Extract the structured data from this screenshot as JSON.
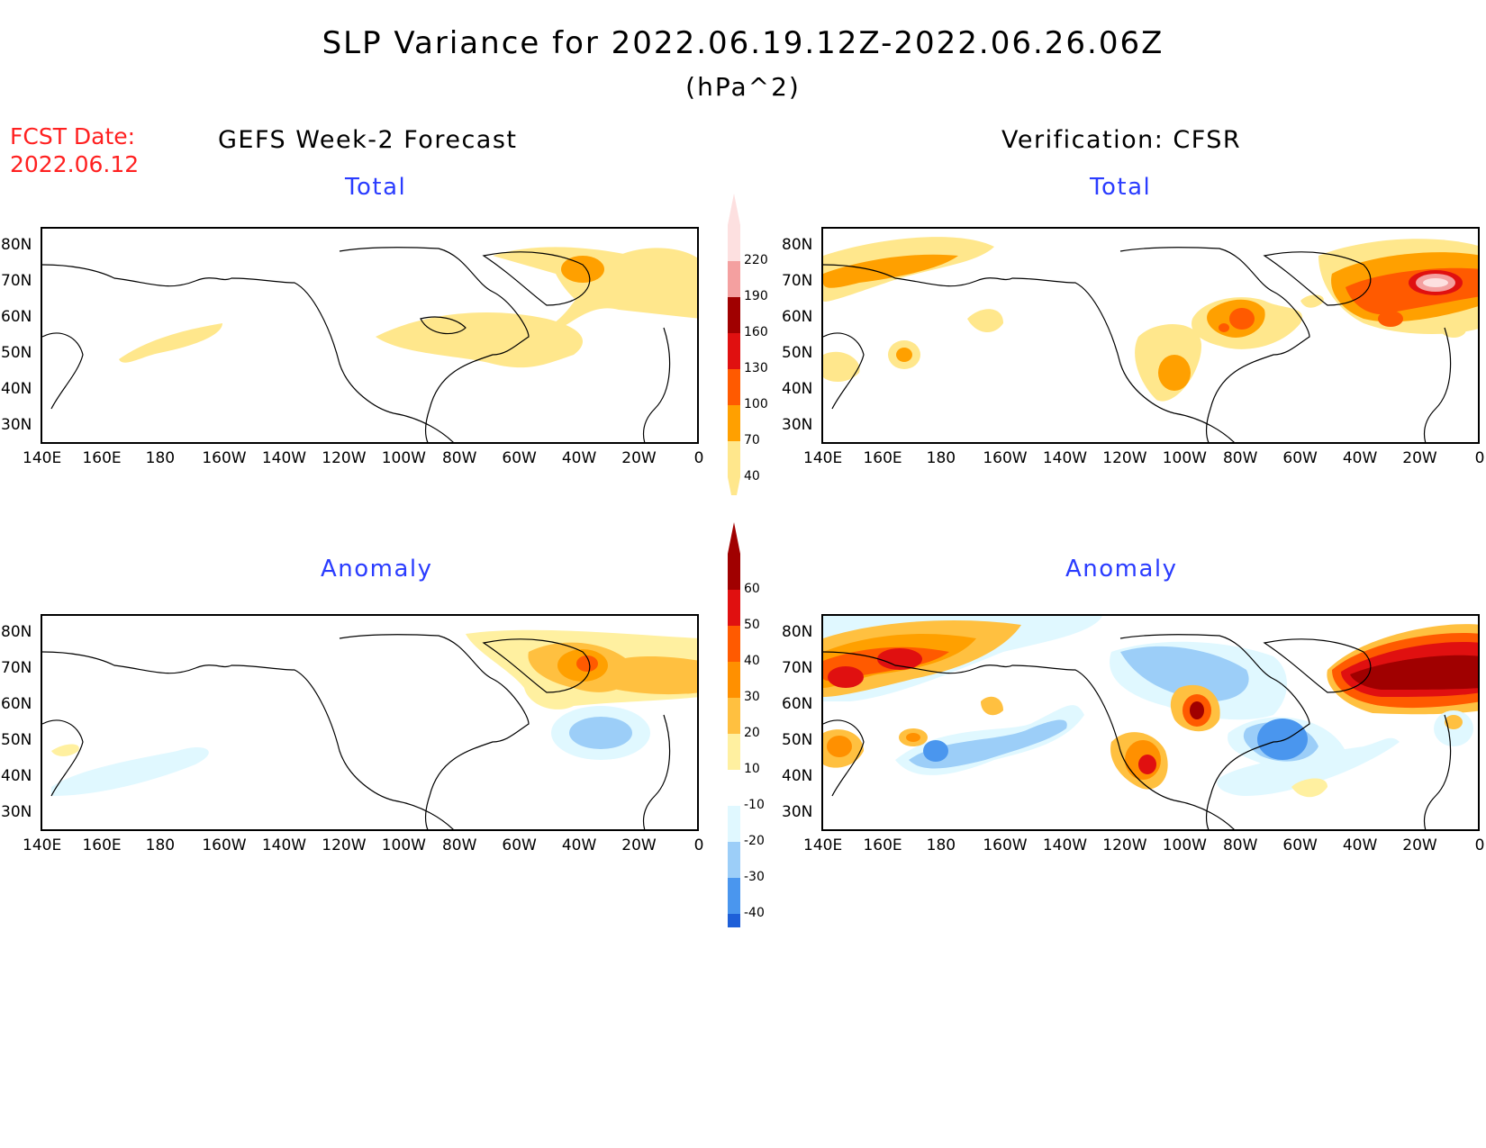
{
  "title": "SLP Variance for 2022.06.19.12Z-2022.06.26.06Z",
  "units": "(hPa^2)",
  "forecast_date": {
    "label": "FCST Date:",
    "value": "2022.06.12"
  },
  "columns": {
    "left": "GEFS Week-2 Forecast",
    "right": "Verification: CFSR"
  },
  "panel_titles": {
    "total": "Total",
    "anomaly": "Anomaly"
  },
  "lon_ticks": [
    "140E",
    "160E",
    "180",
    "160W",
    "140W",
    "120W",
    "100W",
    "80W",
    "60W",
    "40W",
    "20W",
    "0"
  ],
  "lat_ticks": [
    "80N",
    "70N",
    "60N",
    "50N",
    "40N",
    "30N"
  ],
  "colorbars": {
    "total": {
      "labels": [
        "220",
        "190",
        "160",
        "130",
        "100",
        "70",
        "40"
      ],
      "colors": [
        "#fde0e0",
        "#f4a0a0",
        "#a00000",
        "#e01010",
        "#ff5a00",
        "#ffa000",
        "#ffe78c"
      ]
    },
    "anomaly": {
      "labels": [
        "60",
        "50",
        "40",
        "30",
        "20",
        "10",
        "-10",
        "-20",
        "-30",
        "-40"
      ],
      "colors": [
        "#a00000",
        "#e01010",
        "#ff5a00",
        "#ff9000",
        "#ffc040",
        "#fff0a0",
        "#ffffff",
        "#e0f8ff",
        "#9ccef8",
        "#4a96ee",
        "#1e5fd8"
      ]
    }
  },
  "palette": {
    "light_yellow": "#ffe78c",
    "yellow_orange": "#ffc040",
    "orange": "#ffa000",
    "dark_orange": "#ff5a00",
    "red": "#e01010",
    "dark_red": "#a00000",
    "pink": "#fde0e0",
    "light_cyan": "#e0f8ff",
    "light_blue": "#9ccef8",
    "blue": "#4a96ee"
  }
}
